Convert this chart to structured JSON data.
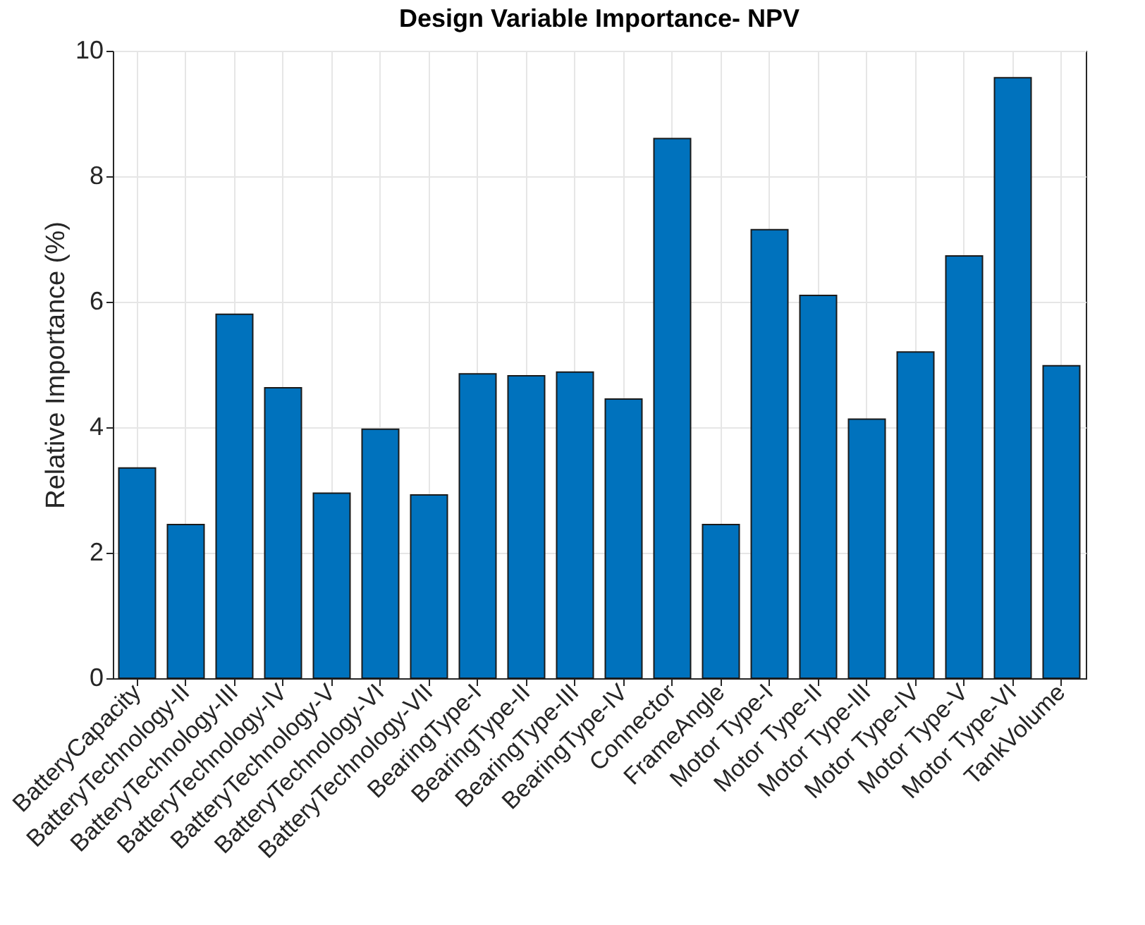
{
  "chart_data": {
    "type": "bar",
    "title": "Design Variable Importance- NPV",
    "ylabel": "Relative Importance (%)",
    "categories": [
      "BatteryCapacity",
      "BatteryTechnology-II",
      "BatteryTechnology-III",
      "BatteryTechnology-IV",
      "BatteryTechnology-V",
      "BatteryTechnology-VI",
      "BatteryTechnology-VII",
      "BearingType-I",
      "BearingType-II",
      "BearingType-III",
      "BearingType-IV",
      "Connector",
      "FrameAngle",
      "Motor Type-I",
      "Motor Type-II",
      "Motor Type-III",
      "Motor Type-IV",
      "Motor Type-V",
      "Motor Type-VI",
      "TankVolume"
    ],
    "values": [
      3.35,
      2.45,
      5.8,
      4.63,
      2.95,
      3.97,
      2.92,
      4.85,
      4.82,
      4.88,
      4.45,
      8.6,
      2.45,
      7.15,
      6.1,
      4.13,
      5.2,
      6.73,
      9.57,
      4.98
    ],
    "color": "#0072bd",
    "ylim": [
      0,
      10
    ],
    "yticks": [
      0,
      2,
      4,
      6,
      8,
      10
    ],
    "grid": true
  }
}
